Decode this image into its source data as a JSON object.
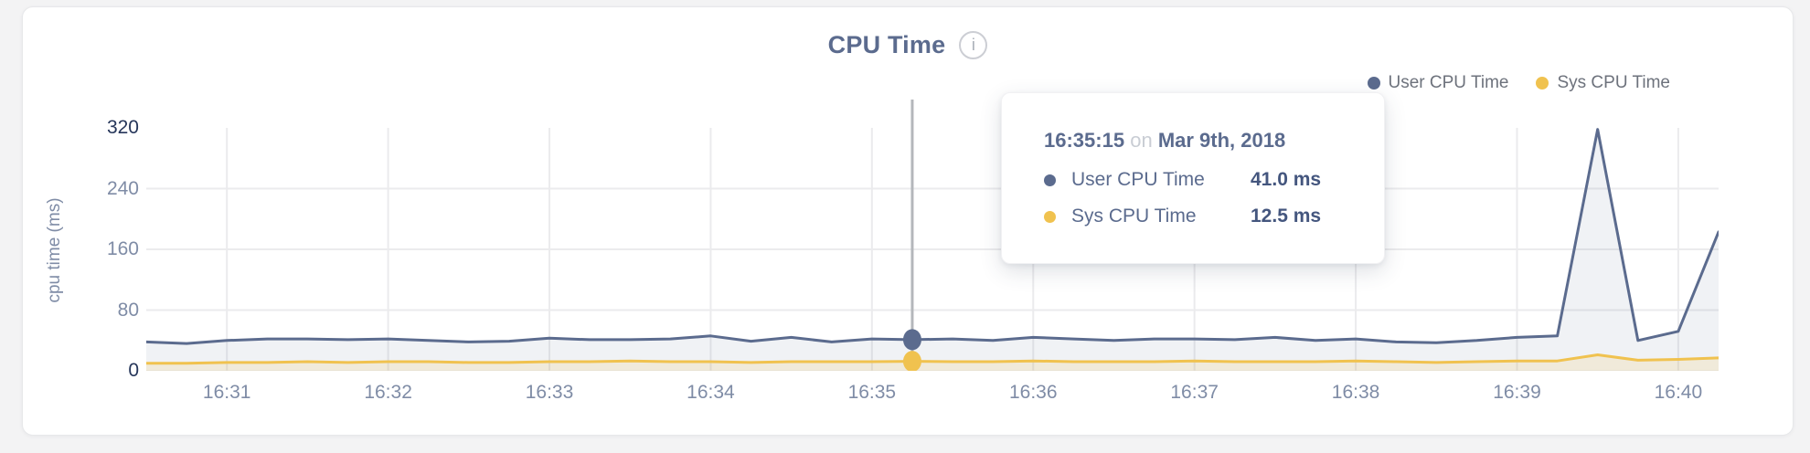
{
  "header": {
    "title": "CPU Time",
    "info_glyph": "i"
  },
  "tooltip": {
    "time": "16:35:15",
    "connector": "on",
    "date": "Mar 9th, 2018",
    "values": [
      "41.0 ms",
      "12.5 ms"
    ]
  },
  "chart_data": {
    "type": "area",
    "title": "CPU Time",
    "ylabel": "cpu time (ms)",
    "ylim": [
      0,
      320
    ],
    "yticks": [
      0,
      80,
      160,
      240,
      320
    ],
    "grid": true,
    "legend_position": "top-right",
    "x_start_label": "16:30:30",
    "x_interval_seconds": 15,
    "x_range_seconds": [
      30,
      615
    ],
    "x_ticks": [
      {
        "label": "16:31",
        "t": 60
      },
      {
        "label": "16:32",
        "t": 120
      },
      {
        "label": "16:33",
        "t": 180
      },
      {
        "label": "16:34",
        "t": 240
      },
      {
        "label": "16:35",
        "t": 300
      },
      {
        "label": "16:36",
        "t": 360
      },
      {
        "label": "16:37",
        "t": 420
      },
      {
        "label": "16:38",
        "t": 480
      },
      {
        "label": "16:39",
        "t": 540
      },
      {
        "label": "16:40",
        "t": 600
      }
    ],
    "hover_index": 19,
    "hover_time": "16:35:15",
    "series": [
      {
        "name": "User CPU Time",
        "color": "#5b6b8e",
        "fill": "rgba(91,107,142,0.09)",
        "values": [
          38,
          36,
          40,
          42,
          42,
          41,
          42,
          40,
          38,
          39,
          43,
          41,
          41,
          42,
          46,
          39,
          44,
          38,
          42,
          41,
          42,
          40,
          44,
          42,
          40,
          42,
          42,
          41,
          44,
          40,
          42,
          38,
          37,
          40,
          44,
          46,
          318,
          40,
          52,
          183
        ]
      },
      {
        "name": "Sys CPU Time",
        "color": "#f0c24f",
        "fill": "rgba(240,194,79,0.16)",
        "values": [
          10,
          10,
          11,
          11,
          12,
          11,
          12,
          12,
          11,
          11,
          12,
          12,
          13,
          12,
          12,
          11,
          12,
          12,
          12,
          12.5,
          12,
          12,
          13,
          12,
          12,
          12,
          13,
          12,
          12,
          12,
          13,
          12,
          11,
          12,
          13,
          13,
          21,
          14,
          15,
          17
        ]
      }
    ],
    "colors": {
      "grid": "#ebebed",
      "hover_line": "#b4b7bb",
      "axis_label": "#7f8ca6",
      "axis_label_emphasis": "#26365a"
    }
  }
}
